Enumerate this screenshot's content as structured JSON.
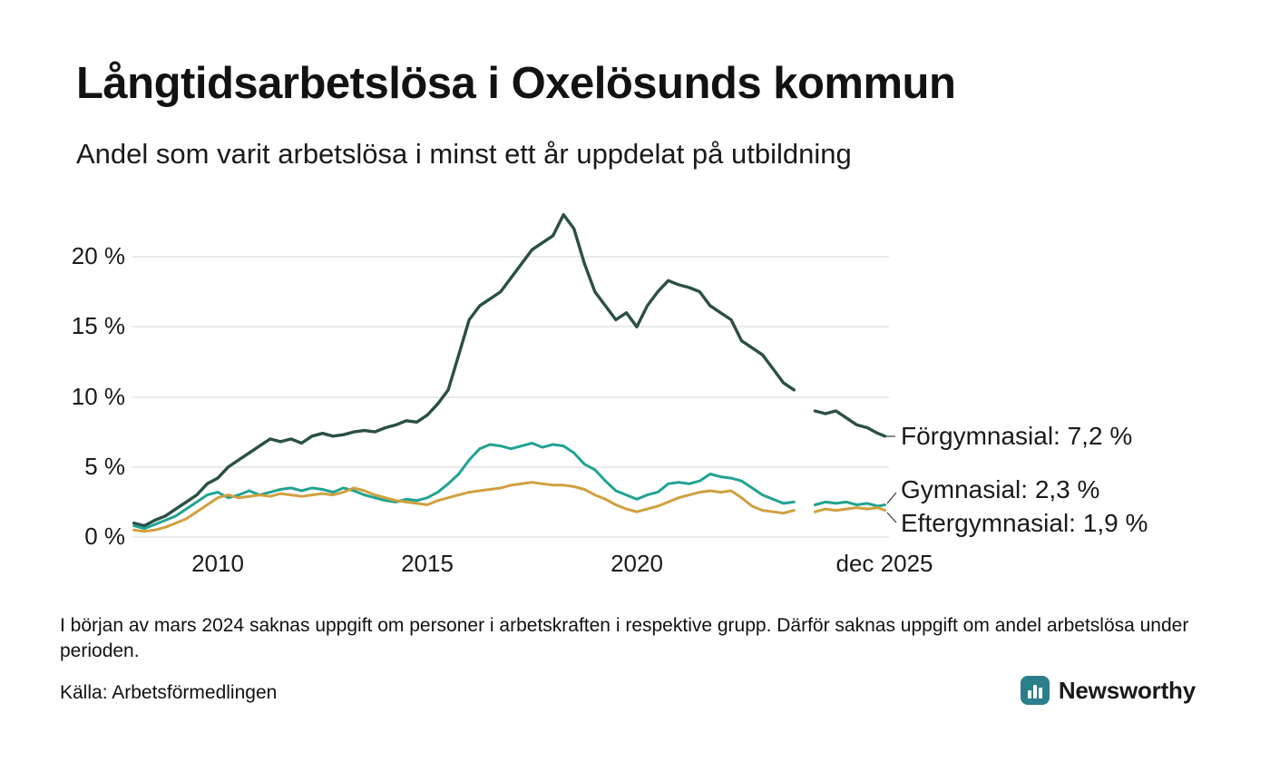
{
  "header": {
    "title": "Långtidsarbetslösa i Oxelösunds kommun",
    "subtitle": "Andel som varit arbetslösa i minst ett år uppdelat på utbildning"
  },
  "chart_data": {
    "type": "line",
    "title": "Långtidsarbetslösa i Oxelösunds kommun",
    "subtitle": "Andel som varit arbetslösa i minst ett år uppdelat på utbildning",
    "unit": "%",
    "grid": true,
    "x": [
      2008,
      2008.25,
      2008.5,
      2008.75,
      2009,
      2009.25,
      2009.5,
      2009.75,
      2010,
      2010.25,
      2010.5,
      2010.75,
      2011,
      2011.25,
      2011.5,
      2011.75,
      2012,
      2012.25,
      2012.5,
      2012.75,
      2013,
      2013.25,
      2013.5,
      2013.75,
      2014,
      2014.25,
      2014.5,
      2014.75,
      2015,
      2015.25,
      2015.5,
      2015.75,
      2016,
      2016.25,
      2016.5,
      2016.75,
      2017,
      2017.25,
      2017.5,
      2017.75,
      2018,
      2018.25,
      2018.5,
      2018.75,
      2019,
      2019.25,
      2019.5,
      2019.75,
      2020,
      2020.25,
      2020.5,
      2020.75,
      2021,
      2021.25,
      2021.5,
      2021.75,
      2022,
      2022.25,
      2022.5,
      2022.75,
      2023,
      2023.25,
      2023.5,
      2023.75,
      2024,
      2024.25,
      2024.5,
      2024.75,
      2025,
      2025.25,
      2025.5,
      2025.75,
      2025.92
    ],
    "x_axis": {
      "tick_positions": [
        2010,
        2015,
        2020,
        2025.92
      ],
      "tick_labels": [
        "2010",
        "2015",
        "2020",
        "dec 2025"
      ]
    },
    "y_axis": {
      "tick_values": [
        0,
        5,
        10,
        15,
        20
      ],
      "tick_labels": [
        "0 %",
        "5 %",
        "10 %",
        "15 %",
        "20 %"
      ],
      "range": [
        0,
        24
      ]
    },
    "series": [
      {
        "name": "Förgymnasial",
        "color": "#2a4f47",
        "end_value": 7.2,
        "end_label": "Förgymnasial: 7,2 %",
        "values": [
          1.0,
          0.8,
          1.2,
          1.5,
          2.0,
          2.5,
          3.0,
          3.8,
          4.2,
          5.0,
          5.5,
          6.0,
          6.5,
          7.0,
          6.8,
          7.0,
          6.7,
          7.2,
          7.4,
          7.2,
          7.3,
          7.5,
          7.6,
          7.5,
          7.8,
          8.0,
          8.3,
          8.2,
          8.7,
          9.5,
          10.5,
          13.0,
          15.5,
          16.5,
          17.0,
          17.5,
          18.5,
          19.5,
          20.5,
          21.0,
          21.5,
          23.0,
          22.0,
          19.5,
          17.5,
          16.5,
          15.5,
          16.0,
          15.0,
          16.5,
          17.5,
          18.3,
          18.0,
          17.8,
          17.5,
          16.5,
          16.0,
          15.5,
          14.0,
          13.5,
          13.0,
          12.0,
          11.0,
          10.5,
          null,
          9.0,
          8.8,
          9.0,
          8.5,
          8.0,
          7.8,
          7.4,
          7.2
        ]
      },
      {
        "name": "Gymnasial",
        "color": "#21a391",
        "end_value": 2.3,
        "end_label": "Gymnasial: 2,3 %",
        "values": [
          0.8,
          0.6,
          0.9,
          1.2,
          1.5,
          2.0,
          2.5,
          3.0,
          3.2,
          2.8,
          3.0,
          3.3,
          3.0,
          3.2,
          3.4,
          3.5,
          3.3,
          3.5,
          3.4,
          3.2,
          3.5,
          3.3,
          3.0,
          2.8,
          2.6,
          2.5,
          2.7,
          2.6,
          2.8,
          3.2,
          3.8,
          4.5,
          5.5,
          6.3,
          6.6,
          6.5,
          6.3,
          6.5,
          6.7,
          6.4,
          6.6,
          6.5,
          6.0,
          5.2,
          4.8,
          4.0,
          3.3,
          3.0,
          2.7,
          3.0,
          3.2,
          3.8,
          3.9,
          3.8,
          4.0,
          4.5,
          4.3,
          4.2,
          4.0,
          3.5,
          3.0,
          2.7,
          2.4,
          2.5,
          null,
          2.3,
          2.5,
          2.4,
          2.5,
          2.3,
          2.4,
          2.2,
          2.3
        ]
      },
      {
        "name": "Eftergymnasial",
        "color": "#d0a03f",
        "end_value": 1.9,
        "end_label": "Eftergymnasial: 1,9 %",
        "values": [
          0.5,
          0.4,
          0.5,
          0.7,
          1.0,
          1.3,
          1.8,
          2.3,
          2.8,
          3.0,
          2.8,
          2.9,
          3.0,
          2.9,
          3.1,
          3.0,
          2.9,
          3.0,
          3.1,
          3.0,
          3.2,
          3.5,
          3.3,
          3.0,
          2.8,
          2.6,
          2.5,
          2.4,
          2.3,
          2.6,
          2.8,
          3.0,
          3.2,
          3.3,
          3.4,
          3.5,
          3.7,
          3.8,
          3.9,
          3.8,
          3.7,
          3.7,
          3.6,
          3.4,
          3.0,
          2.7,
          2.3,
          2.0,
          1.8,
          2.0,
          2.2,
          2.5,
          2.8,
          3.0,
          3.2,
          3.3,
          3.2,
          3.3,
          2.8,
          2.2,
          1.9,
          1.8,
          1.7,
          1.9,
          null,
          1.8,
          2.0,
          1.9,
          2.0,
          2.1,
          2.0,
          2.1,
          1.9
        ]
      }
    ]
  },
  "notes": {
    "footnote": "I början av mars 2024 saknas uppgift om personer i arbetskraften i respektive grupp. Därför saknas uppgift om andel arbetslösa under perioden.",
    "source": "Källa: Arbetsförmedlingen"
  },
  "logo": {
    "text": "Newsworthy",
    "color": "#2a7f8a"
  }
}
